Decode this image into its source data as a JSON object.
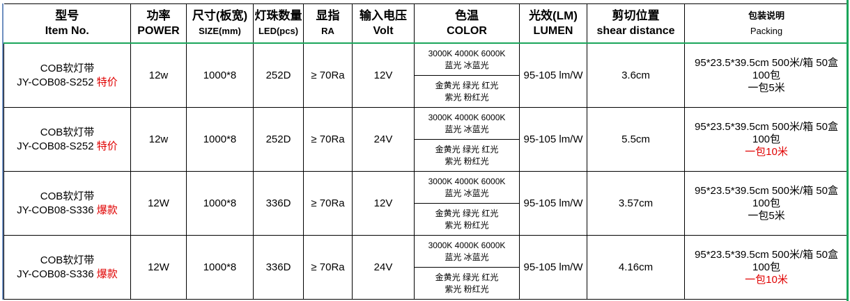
{
  "headers": [
    {
      "l1": "型号",
      "l2": "Item No."
    },
    {
      "l1": "功率",
      "l2": "POWER"
    },
    {
      "l1": "尺寸(板宽)",
      "l2": "SIZE(mm)"
    },
    {
      "l1": "灯珠数量",
      "l2": "LED(pcs)"
    },
    {
      "l1": "显指",
      "l2": "RA"
    },
    {
      "l1": "输入电压",
      "l2": "Volt"
    },
    {
      "l1": "色温",
      "l2": "COLOR"
    },
    {
      "l1": "光效(LM)",
      "l2": "LUMEN"
    },
    {
      "l1": "剪切位置",
      "l2": "shear distance"
    },
    {
      "l1": "包装说明",
      "l2": "Packing"
    }
  ],
  "rows": [
    {
      "name1": "COB软灯带",
      "model": "JY-COB08-S252",
      "tag": "特价",
      "power": "12w",
      "size": "1000*8",
      "led": "252D",
      "ra": "≥ 70Ra",
      "volt": "12V",
      "color_top1": "3000K 4000K 6000K",
      "color_top2": "蓝光 冰蓝光",
      "color_bot1": "金黄光 绿光 红光",
      "color_bot2": "紫光 粉红光",
      "lumen": "95-105 lm/W",
      "shear": "3.6cm",
      "pack1": "95*23.5*39.5cm 500米/箱 50盒 100包",
      "pack2": "一包5米",
      "pack2_red": false
    },
    {
      "name1": "COB软灯带",
      "model": "JY-COB08-S252",
      "tag": "特价",
      "power": "12w",
      "size": "1000*8",
      "led": "252D",
      "ra": "≥ 70Ra",
      "volt": "24V",
      "color_top1": "3000K 4000K 6000K",
      "color_top2": "蓝光 冰蓝光",
      "color_bot1": "金黄光 绿光 红光",
      "color_bot2": "紫光 粉红光",
      "lumen": "95-105 lm/W",
      "shear": "5.5cm",
      "pack1": "95*23.5*39.5cm 500米/箱 50盒 100包",
      "pack2": "一包10米",
      "pack2_red": true
    },
    {
      "name1": "COB软灯带",
      "model": "JY-COB08-S336",
      "tag": "爆款",
      "power": "12W",
      "size": "1000*8",
      "led": "336D",
      "ra": "≥ 70Ra",
      "volt": "12V",
      "color_top1": "3000K 4000K 6000K",
      "color_top2": "蓝光 冰蓝光",
      "color_bot1": "金黄光 绿光 红光",
      "color_bot2": "紫光 粉红光",
      "lumen": "95-105 lm/W",
      "shear": "3.57cm",
      "pack1": "95*23.5*39.5cm 500米/箱 50盒 100包",
      "pack2": "一包5米",
      "pack2_red": false
    },
    {
      "name1": "COB软灯带",
      "model": "JY-COB08-S336",
      "tag": "爆款",
      "power": "12W",
      "size": "1000*8",
      "led": "336D",
      "ra": "≥ 70Ra",
      "volt": "24V",
      "color_top1": "3000K 4000K 6000K",
      "color_top2": "蓝光 冰蓝光",
      "color_bot1": "金黄光 绿光 红光",
      "color_bot2": "紫光 粉红光",
      "lumen": "95-105 lm/W",
      "shear": "4.16cm",
      "pack1": "95*23.5*39.5cm 500米/箱 50盒 100包",
      "pack2": "一包10米",
      "pack2_red": true
    }
  ],
  "colors": {
    "tag": "#e00000",
    "header_rule": "#1aa55a"
  }
}
